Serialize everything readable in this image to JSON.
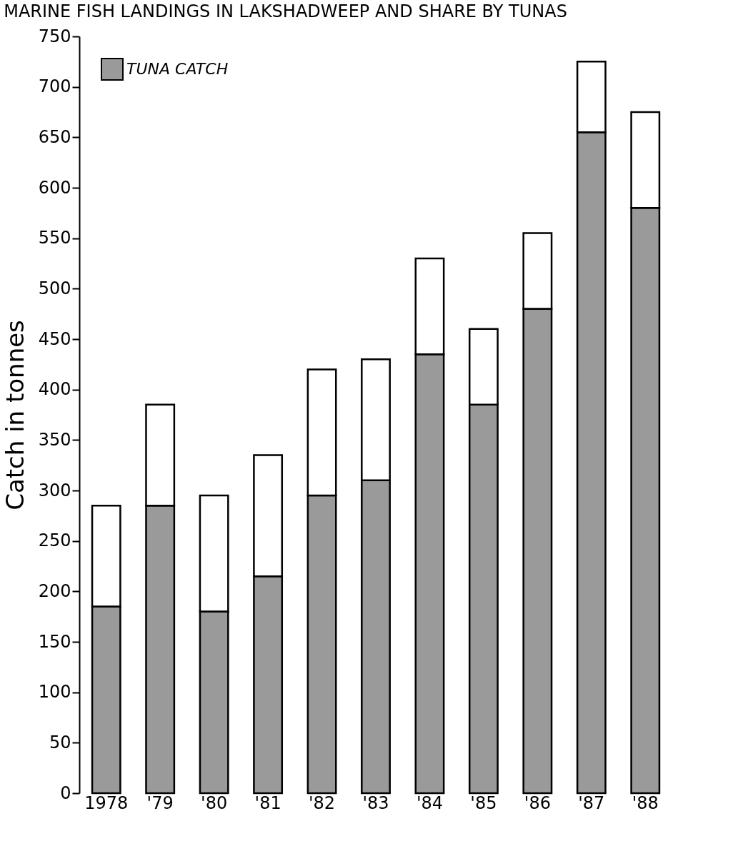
{
  "chart_data": {
    "type": "bar",
    "stacked": true,
    "title": "MARINE FISH LANDINGS IN LAKSHADWEEP AND SHARE BY TUNAS",
    "ylabel": "Catch in tonnes",
    "categories": [
      "1978",
      "'79",
      "'80",
      "'81",
      "'82",
      "'83",
      "'84",
      "'85",
      "'86",
      "'87",
      "'88"
    ],
    "series": [
      {
        "name": "TUNA CATCH",
        "color": "#9a9a9a",
        "values": [
          185,
          285,
          180,
          215,
          295,
          310,
          435,
          385,
          480,
          655,
          580
        ]
      },
      {
        "color": "#ffffff",
        "values": [
          100,
          100,
          115,
          120,
          125,
          120,
          95,
          75,
          75,
          70,
          95
        ]
      }
    ],
    "ylim": [
      0,
      750
    ],
    "yticks": [
      0,
      50,
      100,
      150,
      200,
      250,
      300,
      350,
      400,
      450,
      500,
      550,
      600,
      650,
      700,
      750
    ],
    "grid": false,
    "legend": "top left"
  }
}
